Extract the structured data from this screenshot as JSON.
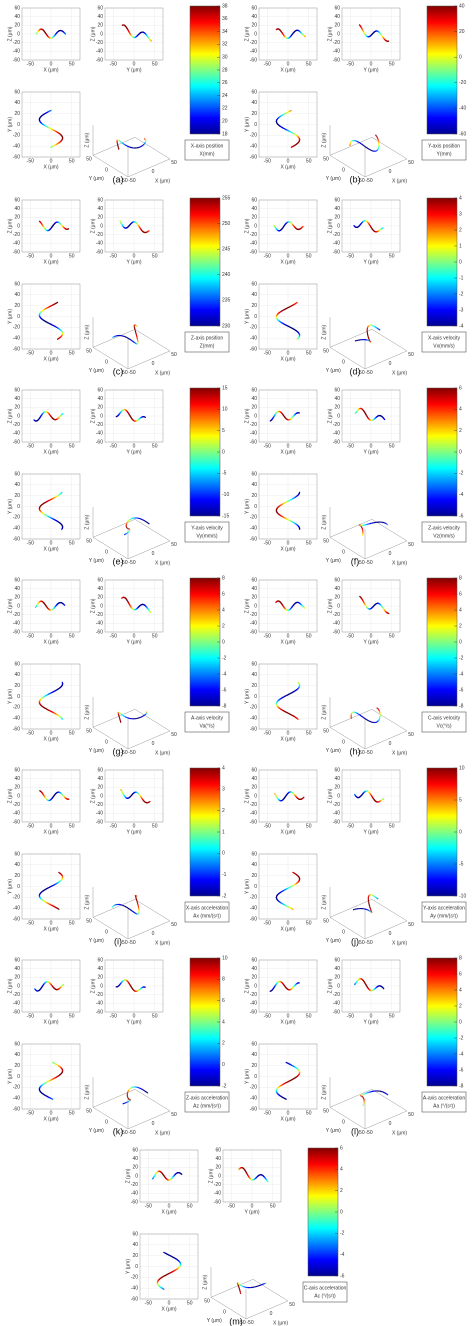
{
  "axes": {
    "x_label": "X (μm)",
    "y_label": "Y (μm)",
    "z_label": "Z (μm)",
    "h_ticks": [
      -50,
      0,
      50
    ],
    "v_ticks": [
      -60,
      -40,
      -20,
      0,
      20,
      40,
      60
    ]
  },
  "panels": [
    {
      "label": "(a)",
      "colorbar": {
        "title": "X-axis position",
        "unit": "X(mm)",
        "ticks": [
          18,
          20,
          22,
          24,
          26,
          28,
          30,
          32,
          34,
          36,
          38
        ]
      }
    },
    {
      "label": "(b)",
      "colorbar": {
        "title": "Y-axis position",
        "unit": "Y(mm)",
        "ticks": [
          -60,
          -40,
          -20,
          0,
          20,
          40
        ]
      }
    },
    {
      "label": "(c)",
      "colorbar": {
        "title": "Z-axis position",
        "unit": "Z(mm)",
        "ticks": [
          230,
          235,
          240,
          245,
          250,
          255
        ]
      }
    },
    {
      "label": "(d)",
      "colorbar": {
        "title": "X-axis velocity",
        "unit": "Vx(mm/s)",
        "ticks": [
          -4,
          -3,
          -2,
          -1,
          0,
          1,
          2,
          3,
          4
        ]
      }
    },
    {
      "label": "(e)",
      "colorbar": {
        "title": "Y-axis velocity",
        "unit": "Vy(mm/s)",
        "ticks": [
          -15,
          -10,
          -5,
          0,
          5,
          10,
          15
        ]
      }
    },
    {
      "label": "(f)",
      "colorbar": {
        "title": "Z-axis velocity",
        "unit": "Vz(mm/s)",
        "ticks": [
          -6,
          -4,
          -2,
          0,
          2,
          4,
          6
        ]
      }
    },
    {
      "label": "(g)",
      "colorbar": {
        "title": "A-axis velocity",
        "unit": "Va(°/s)",
        "ticks": [
          -8,
          -6,
          -4,
          -2,
          0,
          2,
          4,
          6,
          8
        ]
      }
    },
    {
      "label": "(h)",
      "colorbar": {
        "title": "C-axis velocity",
        "unit": "Vc(°/s)",
        "ticks": [
          -8,
          -6,
          -4,
          -2,
          0,
          2,
          4,
          6,
          8
        ]
      }
    },
    {
      "label": "(i)",
      "colorbar": {
        "title": "X-axis acceleration",
        "unit": "Ax (mm/(s²))",
        "ticks": [
          -2,
          -1,
          0,
          1,
          2,
          3,
          4
        ]
      }
    },
    {
      "label": "(j)",
      "colorbar": {
        "title": "Y-axis acceleration",
        "unit": "Ay (mm/(s²))",
        "ticks": [
          -10,
          -5,
          0,
          5,
          10
        ]
      }
    },
    {
      "label": "(k)",
      "colorbar": {
        "title": "Z-axis acceleration",
        "unit": "Az (mm/(s²))",
        "ticks": [
          -2,
          0,
          2,
          4,
          6,
          8,
          10
        ]
      }
    },
    {
      "label": "(l)",
      "colorbar": {
        "title": "A-axis acceleration",
        "unit": "Aa (°/(s²))",
        "ticks": [
          -8,
          -6,
          -4,
          -2,
          0,
          2,
          4,
          6,
          8
        ]
      }
    },
    {
      "label": "(m)",
      "colorbar": {
        "title": "C-axis acceleration",
        "unit": "Ac (°/(s²))",
        "ticks": [
          -6,
          -4,
          -2,
          0,
          2,
          4,
          6
        ]
      }
    }
  ]
}
